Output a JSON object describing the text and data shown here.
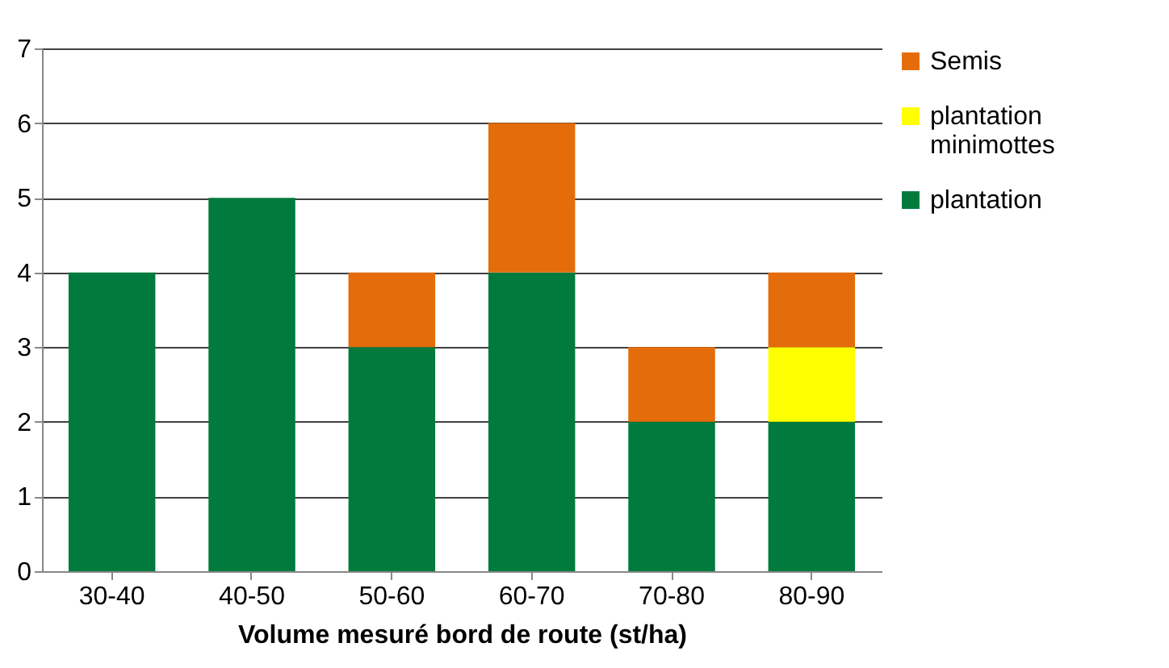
{
  "chart_data": {
    "type": "bar",
    "stacked": true,
    "xlabel": "Volume mesuré bord de route (st/ha)",
    "categories": [
      "30-40",
      "40-50",
      "50-60",
      "60-70",
      "70-80",
      "80-90"
    ],
    "series": [
      {
        "name": "plantation",
        "color": "#007a3d",
        "values": [
          4,
          5,
          3,
          4,
          2,
          2
        ]
      },
      {
        "name": "plantation minimottes",
        "color": "#ffff00",
        "values": [
          null,
          null,
          null,
          null,
          null,
          1
        ]
      },
      {
        "name": "Semis",
        "color": "#e46c0a",
        "values": [
          null,
          null,
          1,
          2,
          1,
          1
        ]
      }
    ],
    "ylim": [
      0,
      7
    ],
    "yticks": [
      0,
      1,
      2,
      3,
      4,
      5,
      6,
      7
    ],
    "grid": "y",
    "legend": "right"
  }
}
